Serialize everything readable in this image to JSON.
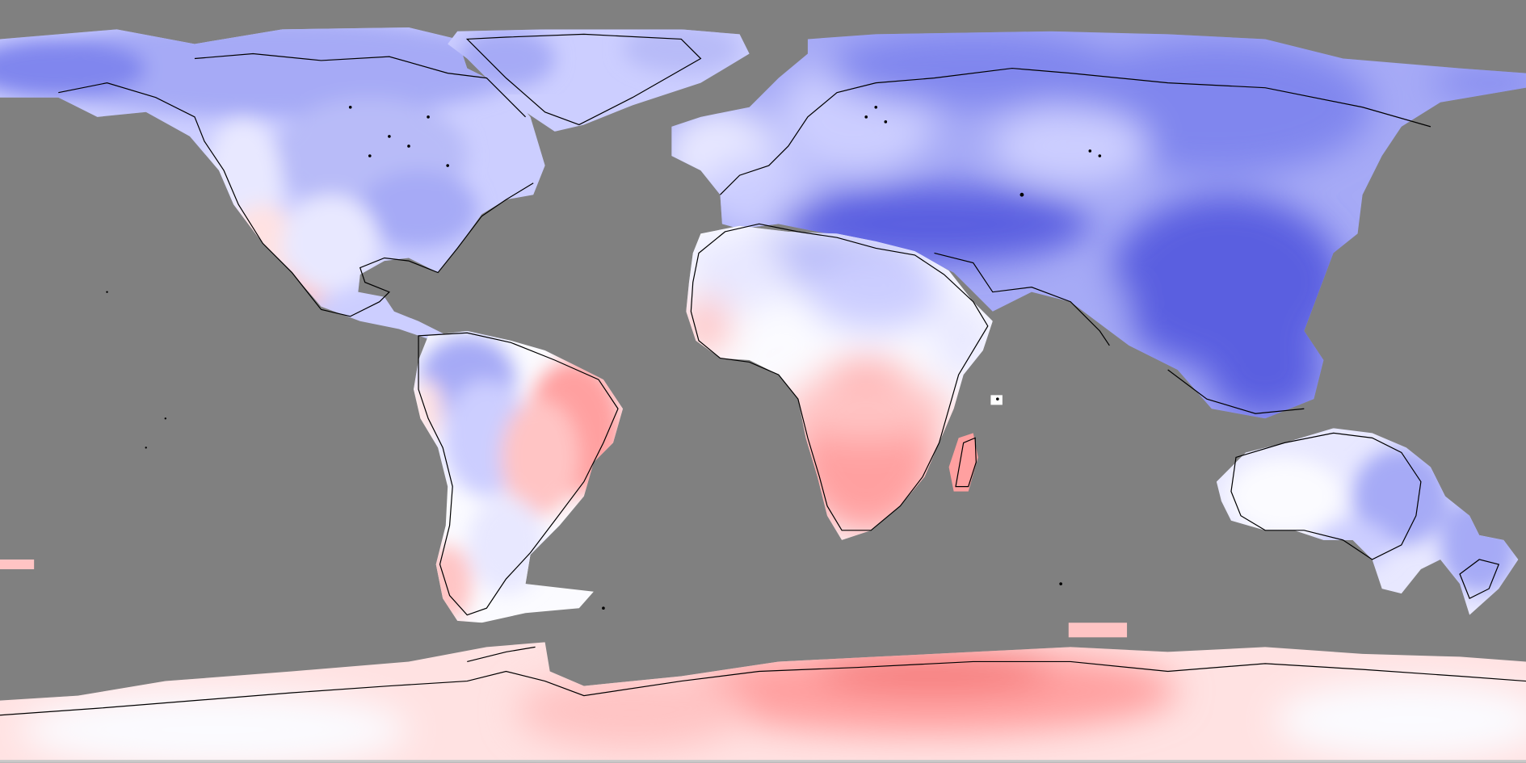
{
  "map": {
    "projection": "equirectangular",
    "background_color": "#808080",
    "coastline_color": "#000000",
    "palette": {
      "deep_blue": "#5a5ee0",
      "blue": "#8086ee",
      "mid_blue": "#a6aaf6",
      "light_blue": "#ccceff",
      "pale_blue": "#e8e8ff",
      "white": "#fbfbff",
      "pale_red": "#ffe2e2",
      "light_red": "#ffc4c4",
      "red": "#ffa0a0",
      "deep_red": "#f57878"
    },
    "regions": [
      {
        "name": "north-america",
        "anomaly": "cool"
      },
      {
        "name": "greenland",
        "anomaly": "cool"
      },
      {
        "name": "south-america",
        "anomaly": "mixed"
      },
      {
        "name": "europe",
        "anomaly": "cool"
      },
      {
        "name": "africa",
        "anomaly": "mixed"
      },
      {
        "name": "asia",
        "anomaly": "strong-cool"
      },
      {
        "name": "australia",
        "anomaly": "cool"
      },
      {
        "name": "antarctica",
        "anomaly": "warm"
      }
    ]
  }
}
